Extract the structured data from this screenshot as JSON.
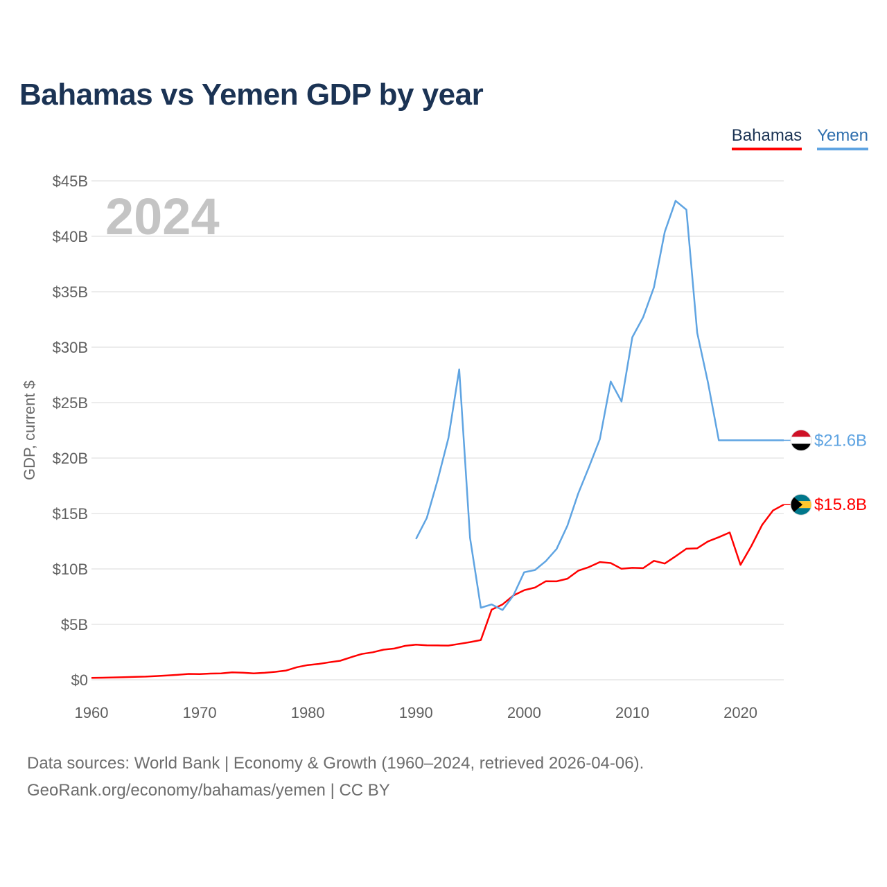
{
  "title": "Bahamas vs Yemen GDP by year",
  "legend": {
    "bahamas": "Bahamas",
    "yemen": "Yemen"
  },
  "year_stamp": "2024",
  "footer": {
    "line1": "Data sources: World Bank | Economy & Growth (1960–2024, retrieved 2026-04-06).",
    "line2": "GeoRank.org/economy/bahamas/yemen | CC BY"
  },
  "colors": {
    "bahamas": "#ff0000",
    "yemen": "#5fa4e2",
    "grid": "#e6e6e6",
    "title": "#1b3354"
  },
  "chart_data": {
    "type": "line",
    "title": "Bahamas vs Yemen GDP by year",
    "ylabel": "GDP, current $",
    "xlabel": "",
    "xlim": [
      1960,
      2024
    ],
    "ylim": [
      0,
      45
    ],
    "x_ticks": [
      1960,
      1970,
      1980,
      1990,
      2000,
      2010,
      2020
    ],
    "y_ticks": [
      0,
      5,
      10,
      15,
      20,
      25,
      30,
      35,
      40,
      45
    ],
    "y_tick_labels": [
      "$0",
      "$5B",
      "$10B",
      "$15B",
      "$20B",
      "$25B",
      "$30B",
      "$35B",
      "$40B",
      "$45B"
    ],
    "units": "billion USD",
    "series": [
      {
        "name": "Bahamas",
        "end_label": "$15.8B",
        "end_value": 15.8,
        "x": [
          1960,
          1961,
          1962,
          1963,
          1964,
          1965,
          1966,
          1967,
          1968,
          1969,
          1970,
          1971,
          1972,
          1973,
          1974,
          1975,
          1976,
          1977,
          1978,
          1979,
          1980,
          1981,
          1982,
          1983,
          1984,
          1985,
          1986,
          1987,
          1988,
          1989,
          1990,
          1991,
          1992,
          1993,
          1994,
          1995,
          1996,
          1997,
          1998,
          1999,
          2000,
          2001,
          2002,
          2003,
          2004,
          2005,
          2006,
          2007,
          2008,
          2009,
          2010,
          2011,
          2012,
          2013,
          2014,
          2015,
          2016,
          2017,
          2018,
          2019,
          2020,
          2021,
          2022,
          2023,
          2024
        ],
        "values": [
          0.17,
          0.19,
          0.21,
          0.23,
          0.26,
          0.29,
          0.34,
          0.39,
          0.45,
          0.53,
          0.52,
          0.56,
          0.58,
          0.67,
          0.64,
          0.58,
          0.63,
          0.72,
          0.84,
          1.14,
          1.33,
          1.43,
          1.58,
          1.72,
          2.04,
          2.33,
          2.48,
          2.72,
          2.82,
          3.06,
          3.17,
          3.11,
          3.1,
          3.09,
          3.24,
          3.4,
          3.59,
          6.33,
          6.8,
          7.6,
          8.08,
          8.32,
          8.89,
          8.88,
          9.12,
          9.84,
          10.17,
          10.62,
          10.53,
          10.01,
          10.1,
          10.07,
          10.73,
          10.49,
          11.14,
          11.82,
          11.86,
          12.48,
          12.86,
          13.29,
          10.37,
          12.06,
          13.97,
          15.27,
          15.8
        ]
      },
      {
        "name": "Yemen",
        "end_label": "$21.6B",
        "end_value": 21.6,
        "x": [
          1990,
          1991,
          1992,
          1993,
          1994,
          1995,
          1996,
          1997,
          1998,
          1999,
          2000,
          2001,
          2002,
          2003,
          2004,
          2005,
          2006,
          2007,
          2008,
          2009,
          2010,
          2011,
          2012,
          2013,
          2014,
          2015,
          2016,
          2017,
          2018,
          2019,
          2020,
          2021,
          2022,
          2023,
          2024
        ],
        "values": [
          12.7,
          14.6,
          18.0,
          21.8,
          28.0,
          12.8,
          6.5,
          6.8,
          6.3,
          7.6,
          9.7,
          9.9,
          10.7,
          11.8,
          13.9,
          16.8,
          19.2,
          21.7,
          26.9,
          25.1,
          30.9,
          32.7,
          35.4,
          40.4,
          43.2,
          42.4,
          31.3,
          26.8,
          21.6,
          21.6,
          21.6,
          21.6,
          21.6,
          21.6,
          21.6
        ]
      }
    ]
  }
}
